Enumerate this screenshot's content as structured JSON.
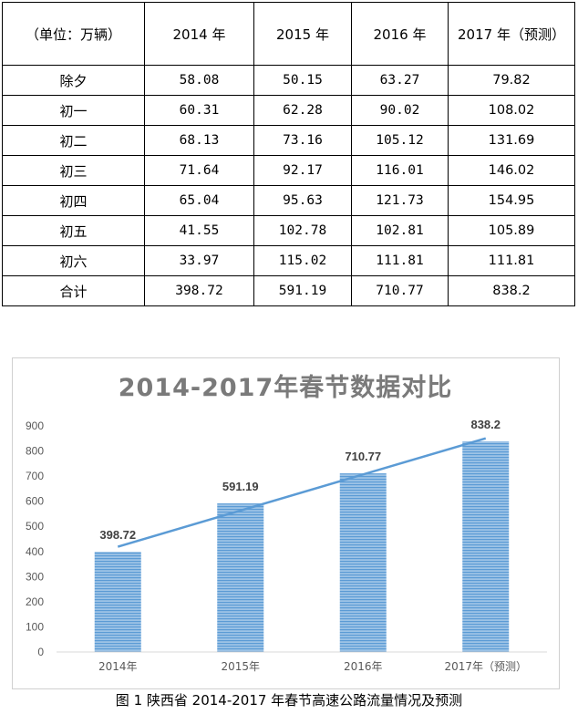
{
  "table": {
    "header": [
      "（单位：万辆）",
      "2014 年",
      "2015 年",
      "2016 年",
      "2017 年（预测）"
    ],
    "rows": [
      [
        "除夕",
        "58.08",
        "50.15",
        "63.27",
        "79.82"
      ],
      [
        "初一",
        "60.31",
        "62.28",
        "90.02",
        "108.02"
      ],
      [
        "初二",
        "68.13",
        "73.16",
        "105.12",
        "131.69"
      ],
      [
        "初三",
        "71.64",
        "92.17",
        "116.01",
        "146.02"
      ],
      [
        "初四",
        "65.04",
        "95.63",
        "121.73",
        "154.95"
      ],
      [
        "初五",
        "41.55",
        "102.78",
        "102.81",
        "105.89"
      ],
      [
        "初六",
        "33.97",
        "115.02",
        "111.81",
        "111.81"
      ],
      [
        "合计",
        "398.72",
        "591.19",
        "710.77",
        "838.2"
      ]
    ]
  },
  "chart_data": {
    "type": "bar",
    "title": "2014-2017年春节数据对比",
    "categories": [
      "2014年",
      "2015年",
      "2016年",
      "2017年（预测）"
    ],
    "values": [
      398.72,
      591.19,
      710.77,
      838.2
    ],
    "value_labels": [
      "398.72",
      "591.19",
      "710.77",
      "838.2"
    ],
    "yticks": [
      "0",
      "100",
      "200",
      "300",
      "400",
      "500",
      "600",
      "700",
      "800",
      "900"
    ],
    "ylim": [
      0,
      900
    ],
    "grid": false,
    "legend": "none",
    "bar_color": "#9dc3e6",
    "bar_stripe_color": "#5b9bd5",
    "trendline": {
      "type": "linear",
      "color": "#5b9bd5"
    }
  },
  "caption": "图 1 陕西省 2014-2017 年春节高速公路流量情况及预测"
}
